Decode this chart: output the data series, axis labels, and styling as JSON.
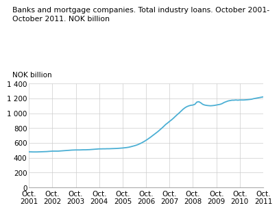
{
  "title": "Banks and mortgage companies. Total industry loans. October 2001-\nOctober 2011. NOK billion",
  "ylabel": "NOK billion",
  "line_color": "#4bafd4",
  "line_width": 1.3,
  "background_color": "#ffffff",
  "grid_color": "#cccccc",
  "ylim": [
    0,
    1400
  ],
  "yticks": [
    0,
    200,
    400,
    600,
    800,
    1000,
    1200,
    1400
  ],
  "x_labels": [
    "Oct.\n2001",
    "Oct.\n2002",
    "Oct.\n2003",
    "Oct.\n2004",
    "Oct.\n2005",
    "Oct.\n2006",
    "Oct.\n2007",
    "Oct.\n2008",
    "Oct.\n2009",
    "Oct.\n2010",
    "Oct.\n2011"
  ],
  "data": {
    "months": [
      0,
      1,
      2,
      3,
      4,
      5,
      6,
      7,
      8,
      9,
      10,
      11,
      12,
      13,
      14,
      15,
      16,
      17,
      18,
      19,
      20,
      21,
      22,
      23,
      24,
      25,
      26,
      27,
      28,
      29,
      30,
      31,
      32,
      33,
      34,
      35,
      36,
      37,
      38,
      39,
      40,
      41,
      42,
      43,
      44,
      45,
      46,
      47,
      48,
      49,
      50,
      51,
      52,
      53,
      54,
      55,
      56,
      57,
      58,
      59,
      60,
      61,
      62,
      63,
      64,
      65,
      66,
      67,
      68,
      69,
      70,
      71,
      72,
      73,
      74,
      75,
      76,
      77,
      78,
      79,
      80,
      81,
      82,
      83,
      84,
      85,
      86,
      87,
      88,
      89,
      90,
      91,
      92,
      93,
      94,
      95,
      96,
      97,
      98,
      99,
      100,
      101,
      102,
      103,
      104,
      105,
      106,
      107,
      108,
      109,
      110,
      111,
      112,
      113,
      114,
      115,
      116,
      117,
      118,
      119,
      120
    ],
    "values": [
      480,
      480,
      479,
      479,
      479,
      480,
      481,
      482,
      483,
      484,
      486,
      488,
      490,
      490,
      490,
      490,
      492,
      494,
      496,
      498,
      500,
      502,
      504,
      505,
      506,
      506,
      506,
      507,
      508,
      508,
      509,
      510,
      512,
      514,
      516,
      518,
      520,
      520,
      521,
      521,
      522,
      522,
      523,
      524,
      525,
      526,
      528,
      530,
      532,
      535,
      538,
      542,
      548,
      555,
      562,
      570,
      580,
      592,
      605,
      620,
      636,
      654,
      672,
      692,
      712,
      732,
      752,
      775,
      798,
      822,
      848,
      868,
      890,
      910,
      933,
      958,
      982,
      1005,
      1030,
      1055,
      1075,
      1090,
      1100,
      1107,
      1110,
      1120,
      1150,
      1155,
      1140,
      1120,
      1110,
      1105,
      1102,
      1100,
      1102,
      1105,
      1110,
      1115,
      1120,
      1130,
      1145,
      1155,
      1165,
      1170,
      1175,
      1175,
      1178,
      1175,
      1178,
      1178,
      1178,
      1180,
      1182,
      1185,
      1188,
      1195,
      1200,
      1205,
      1210,
      1215,
      1220
    ]
  }
}
